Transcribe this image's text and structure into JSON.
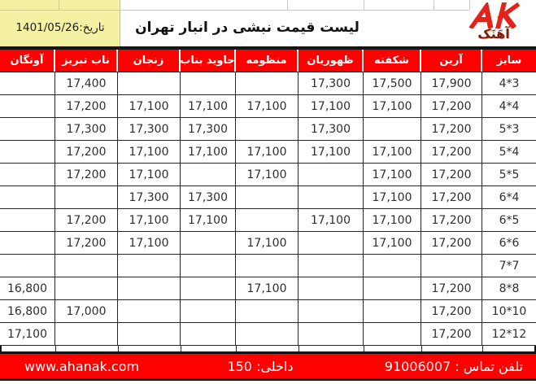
{
  "top": {
    "date": "تاریخ:1401/05/26",
    "title": "لیست قیمت نبشی در انبار تهران",
    "logo_text": "آهَنَک"
  },
  "table": {
    "columns": [
      "آونگان",
      "ناب تبریز",
      "زنجان",
      "جاوید بناب",
      "منظومه",
      "ظهوریان",
      "شکفته",
      "آرین",
      "سایز"
    ],
    "rows": [
      [
        "",
        "17,400",
        "",
        "",
        "",
        "17,300",
        "17,500",
        "17,900",
        "4*3"
      ],
      [
        "",
        "17,200",
        "17,100",
        "17,100",
        "17,100",
        "17,100",
        "17,100",
        "17,200",
        "4*4"
      ],
      [
        "",
        "17,300",
        "17,300",
        "17,300",
        "",
        "17,300",
        "",
        "17,200",
        "5*3"
      ],
      [
        "",
        "17,200",
        "17,100",
        "17,100",
        "17,100",
        "17,100",
        "17,100",
        "17,200",
        "5*4"
      ],
      [
        "",
        "17,200",
        "17,100",
        "",
        "17,100",
        "",
        "17,100",
        "17,200",
        "5*5"
      ],
      [
        "",
        "",
        "17,300",
        "17,300",
        "",
        "",
        "17,100",
        "17,200",
        "6*4"
      ],
      [
        "",
        "17,200",
        "17,100",
        "17,100",
        "",
        "17,100",
        "17,100",
        "17,200",
        "6*5"
      ],
      [
        "",
        "17,200",
        "17,100",
        "",
        "17,100",
        "",
        "17,100",
        "17,200",
        "6*6"
      ],
      [
        "",
        "",
        "",
        "",
        "",
        "",
        "",
        "",
        "7*7"
      ],
      [
        "16,800",
        "",
        "",
        "",
        "17,100",
        "",
        "",
        "17,200",
        "8*8"
      ],
      [
        "16,800",
        "17,000",
        "",
        "",
        "",
        "",
        "",
        "17,200",
        "10*10"
      ],
      [
        "17,100",
        "",
        "",
        "",
        "",
        "",
        "",
        "17,200",
        "12*12"
      ]
    ]
  },
  "footer": {
    "website": "www.ahanak.com",
    "extension": "داخلی: 150",
    "phone": "تلفن تماس : 91006007"
  },
  "colors": {
    "accent_red": "#fe0000",
    "highlight_yellow": "#f4f1a2",
    "grid_dark": "#262626",
    "logo_red": "#e2231a",
    "logo_text_color": "#7e180b"
  }
}
